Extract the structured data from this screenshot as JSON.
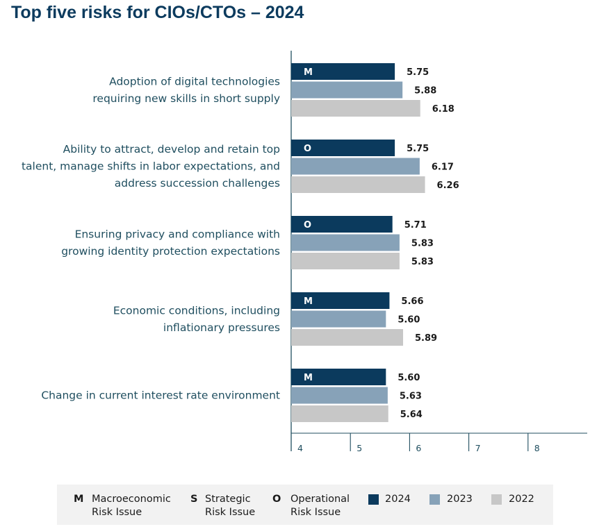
{
  "title": "Top five risks for CIOs/CTOs – 2024",
  "chart_data": {
    "type": "bar",
    "orientation": "horizontal",
    "title": "Top five risks for CIOs/CTOs – 2024",
    "xlim": [
      4,
      9
    ],
    "ticks": [
      "4",
      "5",
      "6",
      "7",
      "8"
    ],
    "categories": [
      {
        "label": [
          "Adoption of digital technologies",
          "requiring new skills in short supply"
        ],
        "badge": "M"
      },
      {
        "label": [
          "Ability to attract, develop and retain top",
          "talent, manage shifts in labor expectations, and",
          "address succession challenges"
        ],
        "badge": "O"
      },
      {
        "label": [
          "Ensuring privacy and compliance with",
          "growing identity protection expectations"
        ],
        "badge": "O"
      },
      {
        "label": [
          "Economic conditions, including",
          "inflationary pressures"
        ],
        "badge": "M"
      },
      {
        "label": [
          "Change in current interest rate environment"
        ],
        "badge": "M"
      }
    ],
    "series": [
      {
        "name": "2024",
        "color": "#0b3a5d",
        "values": [
          5.75,
          5.75,
          5.71,
          5.66,
          5.6
        ],
        "labels": [
          "5.75",
          "5.75",
          "5.71",
          "5.66",
          "5.60"
        ]
      },
      {
        "name": "2023",
        "color": "#87a2b8",
        "values": [
          5.88,
          6.17,
          5.83,
          5.6,
          5.63
        ],
        "labels": [
          "5.88",
          "6.17",
          "5.83",
          "5.60",
          "5.63"
        ]
      },
      {
        "name": "2022",
        "color": "#c7c7c7",
        "values": [
          6.18,
          6.26,
          5.83,
          5.89,
          5.64
        ],
        "labels": [
          "6.18",
          "6.26",
          "5.83",
          "5.89",
          "5.64"
        ]
      }
    ]
  },
  "legend": {
    "risk_types": [
      {
        "code": "M",
        "line1": "Macroeconomic",
        "line2": "Risk Issue"
      },
      {
        "code": "S",
        "line1": "Strategic",
        "line2": "Risk Issue"
      },
      {
        "code": "O",
        "line1": "Operational",
        "line2": "Risk Issue"
      }
    ],
    "years": [
      {
        "label": "2024",
        "color": "#0b3a5d"
      },
      {
        "label": "2023",
        "color": "#87a2b8"
      },
      {
        "label": "2022",
        "color": "#c7c7c7"
      }
    ]
  }
}
